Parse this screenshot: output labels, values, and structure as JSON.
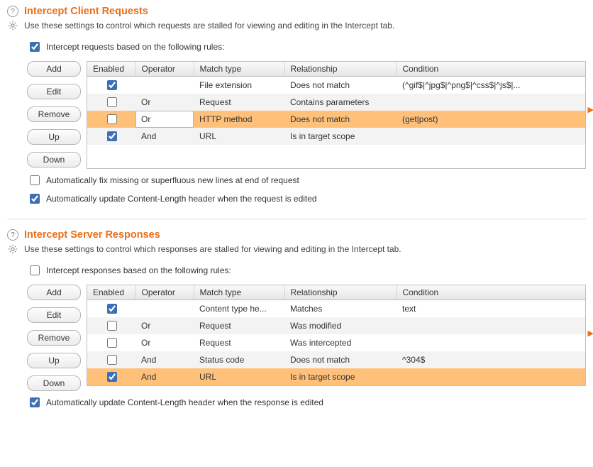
{
  "requests": {
    "title": "Intercept Client Requests",
    "desc": "Use these settings to control which requests are stalled for viewing and editing in the Intercept tab.",
    "rule_toggle_label": "Intercept requests based on the following rules:",
    "rule_toggle_checked": true,
    "buttons": {
      "add": "Add",
      "edit": "Edit",
      "remove": "Remove",
      "up": "Up",
      "down": "Down"
    },
    "columns": {
      "enabled": "Enabled",
      "operator": "Operator",
      "match": "Match type",
      "relationship": "Relationship",
      "condition": "Condition"
    },
    "rows": [
      {
        "enabled": true,
        "operator": "",
        "match": "File extension",
        "relationship": "Does not match",
        "condition": "(^gif$|^jpg$|^png$|^css$|^js$|...",
        "selected": false
      },
      {
        "enabled": false,
        "operator": "Or",
        "match": "Request",
        "relationship": "Contains parameters",
        "condition": "",
        "selected": false
      },
      {
        "enabled": false,
        "operator": "Or",
        "match": "HTTP method",
        "relationship": "Does not match",
        "condition": "(get|post)",
        "selected": true,
        "editing_operator": true
      },
      {
        "enabled": true,
        "operator": "And",
        "match": "URL",
        "relationship": "Is in target scope",
        "condition": "",
        "selected": false
      }
    ],
    "auto_fix": {
      "label": "Automatically fix missing or superfluous new lines at end of request",
      "checked": false
    },
    "auto_len": {
      "label": "Automatically update Content-Length header when the request is edited",
      "checked": true
    },
    "arrow_row_index": 2
  },
  "responses": {
    "title": "Intercept Server Responses",
    "desc": "Use these settings to control which responses are stalled for viewing and editing in the Intercept tab.",
    "rule_toggle_label": "Intercept responses based on the following rules:",
    "rule_toggle_checked": false,
    "buttons": {
      "add": "Add",
      "edit": "Edit",
      "remove": "Remove",
      "up": "Up",
      "down": "Down"
    },
    "columns": {
      "enabled": "Enabled",
      "operator": "Operator",
      "match": "Match type",
      "relationship": "Relationship",
      "condition": "Condition"
    },
    "rows": [
      {
        "enabled": true,
        "operator": "",
        "match": "Content type he...",
        "relationship": "Matches",
        "condition": "text",
        "selected": false
      },
      {
        "enabled": false,
        "operator": "Or",
        "match": "Request",
        "relationship": "Was modified",
        "condition": "",
        "selected": false
      },
      {
        "enabled": false,
        "operator": "Or",
        "match": "Request",
        "relationship": "Was intercepted",
        "condition": "",
        "selected": false
      },
      {
        "enabled": false,
        "operator": "And",
        "match": "Status code",
        "relationship": "Does not match",
        "condition": "^304$",
        "selected": false
      },
      {
        "enabled": true,
        "operator": "And",
        "match": "URL",
        "relationship": "Is in target scope",
        "condition": "",
        "selected": true
      }
    ],
    "auto_len": {
      "label": "Automatically update Content-Length header when the response is edited",
      "checked": true
    },
    "arrow_row_index": 2
  }
}
